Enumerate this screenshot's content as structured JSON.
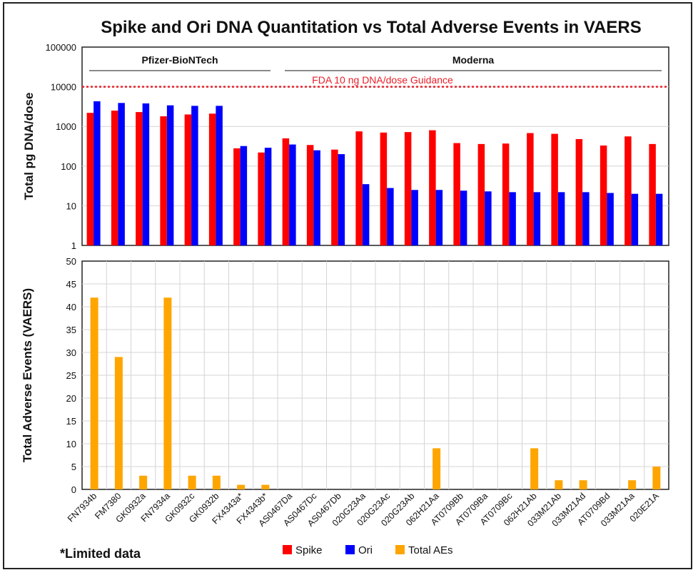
{
  "chart_data": [
    {
      "type": "bar",
      "title": "Spike and Ori DNA Quantitation vs Total Adverse Events in VAERS",
      "ylabel": "Total pg DNA/dose",
      "yscale": "log",
      "ylim": [
        1,
        100000
      ],
      "yticks": [
        "1",
        "10",
        "100",
        "1000",
        "10000",
        "100000"
      ],
      "categories": [
        "FN7934b",
        "FM7380",
        "GK0932a",
        "FN7934a",
        "GK0932c",
        "GK0932b",
        "FX4343a*",
        "FX4343b*",
        "AS0467Da",
        "AS0467Dc",
        "AS0467Db",
        "020G23Aa",
        "020G23Ac",
        "020G23Ab",
        "062H21Aa",
        "AT0709Bb",
        "AT0709Ba",
        "AT0709Bc",
        "062H21Ab",
        "033M21Ab",
        "033M21Ad",
        "AT0709Bd",
        "033M21Aa",
        "020E21A"
      ],
      "series": [
        {
          "name": "Spike",
          "color": "#ff0000",
          "values": [
            2200,
            2500,
            2300,
            1800,
            2000,
            2100,
            280,
            220,
            500,
            340,
            260,
            750,
            700,
            720,
            800,
            380,
            360,
            370,
            680,
            650,
            480,
            330,
            560,
            360
          ]
        },
        {
          "name": "Ori",
          "color": "#0000ff",
          "values": [
            4300,
            3900,
            3800,
            3400,
            3300,
            3300,
            320,
            290,
            350,
            250,
            200,
            35,
            28,
            25,
            25,
            24,
            23,
            22,
            22,
            22,
            22,
            21,
            20,
            20
          ]
        }
      ],
      "groups": [
        {
          "label": "Pfizer-BioNTech",
          "start": 0,
          "end": 7
        },
        {
          "label": "Moderna",
          "start": 8,
          "end": 23
        }
      ],
      "reference_line": {
        "label": "FDA 10 ng DNA/dose Guidance",
        "value": 10000,
        "color": "#e8202a"
      }
    },
    {
      "type": "bar",
      "ylabel": "Total Adverse Events (VAERS)",
      "ylim": [
        0,
        50
      ],
      "yticks": [
        "0",
        "5",
        "10",
        "15",
        "20",
        "25",
        "30",
        "35",
        "40",
        "45",
        "50"
      ],
      "series": [
        {
          "name": "Total AEs",
          "color": "#ffa500",
          "values": [
            42,
            29,
            3,
            42,
            3,
            3,
            1,
            1,
            0,
            0,
            0,
            0,
            0,
            0,
            9,
            0,
            0,
            0,
            9,
            2,
            2,
            0,
            2,
            5
          ]
        }
      ]
    }
  ],
  "legend": [
    {
      "label": "Spike",
      "color": "#ff0000"
    },
    {
      "label": "Ori",
      "color": "#0000ff"
    },
    {
      "label": "Total AEs",
      "color": "#ffa500"
    }
  ],
  "footnote": "*Limited data"
}
